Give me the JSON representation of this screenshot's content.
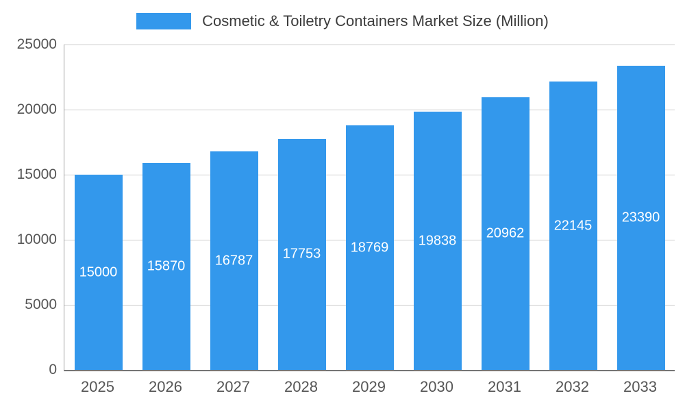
{
  "chart_data": {
    "type": "bar",
    "title": "Cosmetic & Toiletry Containers Market Size (Million)",
    "categories": [
      "2025",
      "2026",
      "2027",
      "2028",
      "2029",
      "2030",
      "2031",
      "2032",
      "2033"
    ],
    "values": [
      15000,
      15870,
      16787,
      17753,
      18769,
      19838,
      20962,
      22145,
      23390
    ],
    "xlabel": "",
    "ylabel": "",
    "ylim": [
      0,
      25000
    ],
    "yticks": [
      0,
      5000,
      10000,
      15000,
      20000,
      25000
    ],
    "grid": "horizontal",
    "legend_position": "top-center",
    "bar_color": "#3398EC",
    "bar_label_color": "#ffffff",
    "axis_text_color": "#565656",
    "title_color": "#3c3c3c",
    "gridline_color": "#cccccc",
    "background_color": "#ffffff"
  }
}
